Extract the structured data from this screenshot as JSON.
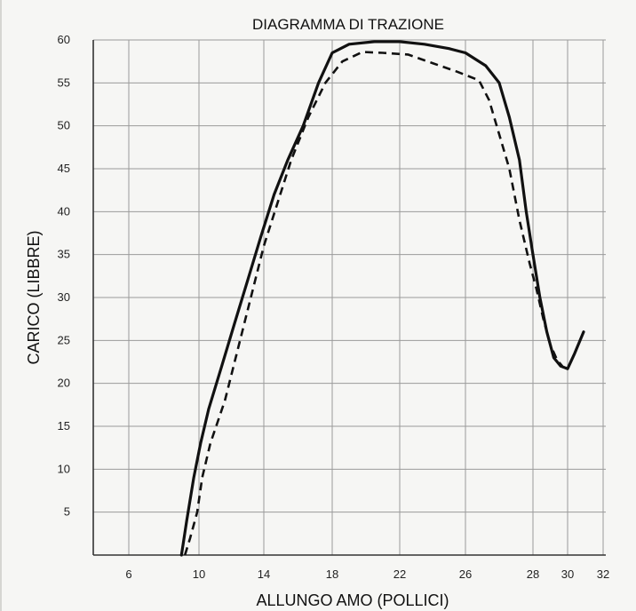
{
  "chart_data": {
    "type": "line",
    "title": "DIAGRAMMA DI TRAZIONE",
    "xlabel": "ALLUNGO AMO (POLLICI)",
    "ylabel": "CARICO (LIBBRE)",
    "x_ticks": [
      "6",
      "10",
      "14",
      "18",
      "22",
      "26",
      "28",
      "30",
      "32"
    ],
    "y_ticks": [
      "5",
      "10",
      "15",
      "20",
      "25",
      "30",
      "35",
      "40",
      "45",
      "50",
      "55",
      "60"
    ],
    "ylim": [
      0,
      60
    ],
    "grid": true,
    "colors": {
      "line": "#111111",
      "grid": "#9a9a9a",
      "axis": "#333333"
    },
    "series": [
      {
        "style": "solid",
        "points": [
          [
            9.0,
            0
          ],
          [
            9.3,
            4
          ],
          [
            9.7,
            9
          ],
          [
            10.1,
            13
          ],
          [
            10.6,
            17
          ],
          [
            11.4,
            22
          ],
          [
            12.2,
            27
          ],
          [
            13.0,
            32
          ],
          [
            13.8,
            37
          ],
          [
            14.6,
            42
          ],
          [
            15.4,
            46
          ],
          [
            16.3,
            50
          ],
          [
            17.2,
            55
          ],
          [
            18.0,
            58.5
          ],
          [
            19.0,
            59.5
          ],
          [
            20.5,
            59.8
          ],
          [
            22.0,
            59.8
          ],
          [
            23.5,
            59.5
          ],
          [
            25.0,
            59
          ],
          [
            26.0,
            58.5
          ],
          [
            26.6,
            57
          ],
          [
            27.0,
            55
          ],
          [
            27.3,
            51
          ],
          [
            27.6,
            46
          ],
          [
            27.8,
            40
          ],
          [
            28.0,
            35
          ],
          [
            28.4,
            30
          ],
          [
            28.8,
            26
          ],
          [
            29.2,
            23
          ],
          [
            29.6,
            22
          ],
          [
            30.0,
            21.7
          ],
          [
            30.4,
            23.5
          ],
          [
            30.9,
            26
          ]
        ]
      },
      {
        "style": "dashed",
        "points": [
          [
            9.2,
            0
          ],
          [
            9.5,
            2
          ],
          [
            9.9,
            5
          ],
          [
            10.2,
            9
          ],
          [
            10.7,
            13
          ],
          [
            11.6,
            18
          ],
          [
            12.4,
            24
          ],
          [
            13.2,
            30
          ],
          [
            14.0,
            36
          ],
          [
            14.8,
            41
          ],
          [
            15.6,
            46
          ],
          [
            16.6,
            51
          ],
          [
            17.6,
            55
          ],
          [
            18.6,
            57.5
          ],
          [
            19.8,
            58.6
          ],
          [
            21.0,
            58.5
          ],
          [
            22.5,
            58.3
          ],
          [
            24.0,
            57.3
          ],
          [
            25.5,
            56.3
          ],
          [
            26.4,
            55.3
          ],
          [
            26.7,
            53
          ],
          [
            27.0,
            49
          ],
          [
            27.3,
            45
          ],
          [
            27.6,
            39
          ],
          [
            27.9,
            34
          ],
          [
            28.2,
            31
          ],
          [
            28.6,
            27.5
          ],
          [
            29.0,
            24.5
          ],
          [
            29.4,
            22.7
          ],
          [
            29.7,
            22
          ]
        ]
      }
    ]
  }
}
